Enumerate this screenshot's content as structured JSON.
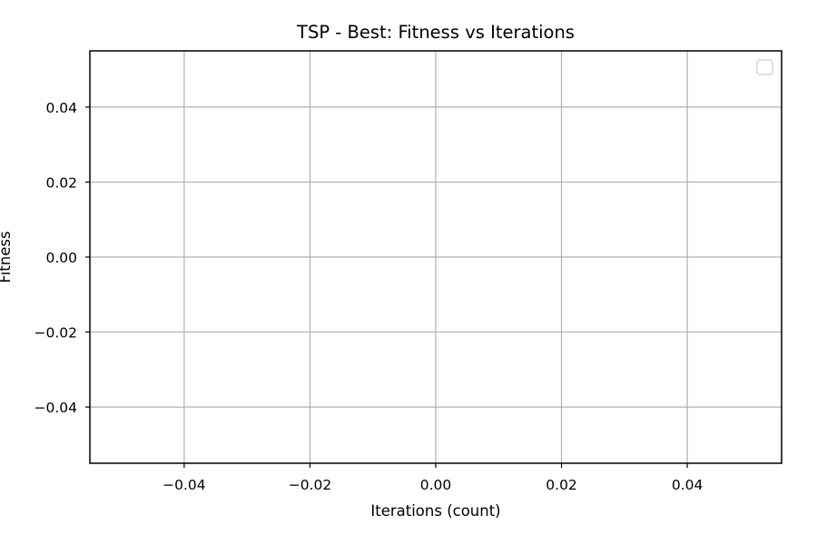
{
  "chart_data": {
    "type": "line",
    "title": "TSP - Best: Fitness vs Iterations",
    "xlabel": "Iterations (count)",
    "ylabel": "Fitness",
    "xlim": [
      -0.055,
      0.055
    ],
    "ylim": [
      -0.055,
      0.055
    ],
    "x_ticks": [
      -0.04,
      -0.02,
      0.0,
      0.02,
      0.04
    ],
    "y_ticks": [
      -0.04,
      -0.02,
      0.0,
      0.02,
      0.04
    ],
    "x_tick_labels": [
      "−0.04",
      "−0.02",
      "0.00",
      "0.02",
      "0.04"
    ],
    "y_tick_labels": [
      "−0.04",
      "−0.02",
      "0.00",
      "0.02",
      "0.04"
    ],
    "series": [],
    "grid": true,
    "legend_position": "upper right",
    "colors": {
      "grid": "#b0b0b0",
      "axes": "#000000",
      "legend_border": "#cccccc"
    }
  }
}
